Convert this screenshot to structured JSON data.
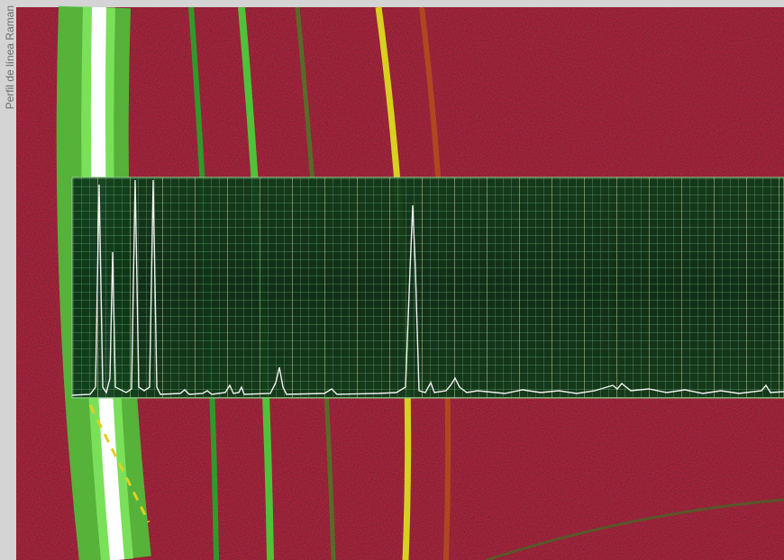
{
  "caption": "Perfil de línea Raman"
}
